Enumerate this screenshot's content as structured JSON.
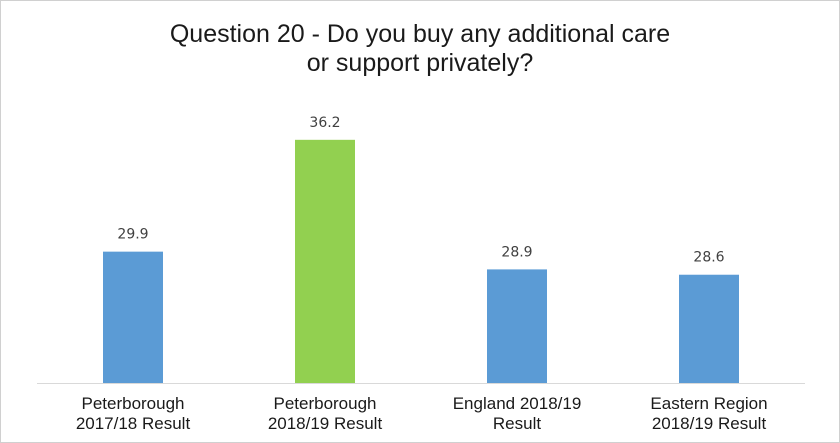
{
  "chart_data": {
    "type": "bar",
    "title_lines": [
      "Question 20 - Do you buy any additional care",
      "or support privately?"
    ],
    "categories": [
      [
        "Peterborough",
        "2017/18 Result"
      ],
      [
        "Peterborough",
        "2018/19 Result"
      ],
      [
        "England 2018/19",
        "Result"
      ],
      [
        "Eastern Region",
        "2018/19 Result"
      ]
    ],
    "values": [
      29.9,
      36.2,
      28.9,
      28.6
    ],
    "value_labels": [
      "29.9",
      "36.2",
      "28.9",
      "28.6"
    ],
    "bar_colors": [
      "#5B9BD5",
      "#92D050",
      "#5B9BD5",
      "#5B9BD5"
    ],
    "xlabel": "",
    "ylabel": "",
    "ylim": [
      22.5,
      36.2
    ],
    "grid": false,
    "legend": "none"
  }
}
